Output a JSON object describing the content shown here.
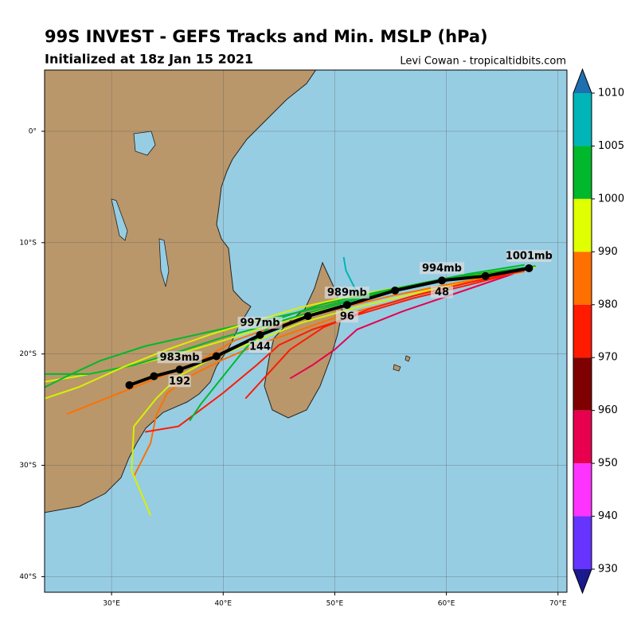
{
  "header": {
    "title": "99S INVEST - GEFS Tracks and Min. MSLP (hPa)",
    "subtitle": "Initialized at 18z Jan 15 2021",
    "credit": "Levi Cowan - tropicaltidbits.com"
  },
  "map": {
    "lonlim": [
      24,
      70.8
    ],
    "latlim": [
      5.5,
      -41.4
    ],
    "lonticks": [
      {
        "value": 30,
        "label": "30°E"
      },
      {
        "value": 40,
        "label": "40°E"
      },
      {
        "value": 50,
        "label": "50°E"
      },
      {
        "value": 60,
        "label": "60°E"
      },
      {
        "value": 70,
        "label": "70°E"
      }
    ],
    "latticks": [
      {
        "value": 0,
        "label": "0°"
      },
      {
        "value": -10,
        "label": "10°S"
      },
      {
        "value": -20,
        "label": "20°S"
      },
      {
        "value": -30,
        "label": "30°S"
      },
      {
        "value": -40,
        "label": "40°S"
      }
    ],
    "grid": true
  },
  "members": [
    {
      "color": "#d8f000",
      "lon": [
        68,
        64,
        60,
        56,
        52,
        48,
        44,
        40,
        36,
        32,
        27,
        24
      ],
      "lat": [
        -12.2,
        -12.6,
        -13.2,
        -14.0,
        -15.0,
        -16.3,
        -17.5,
        -18.8,
        -20.0,
        -21.0,
        -22.0,
        -22.5
      ]
    },
    {
      "color": "#00b82c",
      "lon": [
        68,
        63,
        58,
        53,
        48,
        44,
        40,
        36,
        32,
        28,
        24
      ],
      "lat": [
        -12.1,
        -12.8,
        -13.6,
        -14.8,
        -16.2,
        -17.4,
        -18.5,
        -19.8,
        -21.0,
        -21.8,
        -21.8
      ]
    },
    {
      "color": "#ff7000",
      "lon": [
        67.5,
        63,
        59,
        55,
        51,
        47,
        43,
        40,
        37,
        35,
        34,
        33.5,
        32
      ],
      "lat": [
        -12.3,
        -13.2,
        -14.2,
        -15.4,
        -16.4,
        -17.8,
        -19.2,
        -20.5,
        -22.0,
        -23.5,
        -25.5,
        -28,
        -31
      ]
    },
    {
      "color": "#d8f000",
      "lon": [
        67,
        62,
        57,
        52,
        47,
        43,
        39,
        36,
        34,
        32,
        31.8,
        33.5
      ],
      "lat": [
        -12.4,
        -13.4,
        -14.6,
        -15.8,
        -17.2,
        -18.8,
        -20.4,
        -22.0,
        -24.0,
        -26.5,
        -30.5,
        -34.5
      ]
    },
    {
      "color": "#ff1a00",
      "lon": [
        67,
        62,
        57,
        52,
        48,
        45,
        43,
        40,
        36,
        33
      ],
      "lat": [
        -12.5,
        -13.8,
        -15.0,
        -16.5,
        -17.8,
        -19.2,
        -21.0,
        -23.5,
        -26.5,
        -27.0
      ]
    },
    {
      "color": "#e8004e",
      "lon": [
        66,
        61,
        56,
        52,
        50,
        48,
        46
      ],
      "lat": [
        -12.8,
        -14.5,
        -16.2,
        -17.8,
        -19.6,
        -21.0,
        -22.2
      ]
    },
    {
      "color": "#00b82c",
      "lon": [
        67,
        62,
        57,
        52,
        47,
        42,
        37,
        33,
        29,
        26,
        24
      ],
      "lat": [
        -12,
        -12.8,
        -13.8,
        -15.0,
        -16.2,
        -17.3,
        -18.4,
        -19.3,
        -20.6,
        -22.0,
        -23.0
      ]
    },
    {
      "color": "#ff7000",
      "lon": [
        67,
        61,
        55,
        50,
        45,
        41,
        38,
        34,
        30,
        26
      ],
      "lat": [
        -12.6,
        -13.6,
        -14.8,
        -16.0,
        -17.4,
        -18.8,
        -20.6,
        -22.2,
        -23.8,
        -25.4
      ]
    },
    {
      "color": "#d8f000",
      "lon": [
        67.5,
        62,
        57,
        52,
        47,
        43,
        39,
        35,
        31,
        27,
        24
      ],
      "lat": [
        -12.3,
        -13.0,
        -13.8,
        -14.7,
        -15.8,
        -17.0,
        -18.2,
        -19.6,
        -21.2,
        -23.0,
        -24.0
      ]
    },
    {
      "color": "#00b82c",
      "lon": [
        66,
        60,
        54,
        49,
        45,
        42,
        40,
        38,
        37
      ],
      "lat": [
        -12.4,
        -13.2,
        -14.4,
        -15.5,
        -16.8,
        -19.5,
        -22.0,
        -24.5,
        -26.0
      ]
    },
    {
      "color": "#00b4b4",
      "lon": [
        52,
        51.5,
        51,
        50.8
      ],
      "lat": [
        -14.5,
        -13.5,
        -12.5,
        -11.3
      ]
    },
    {
      "color": "#ff1a00",
      "lon": [
        67,
        62,
        57,
        53,
        49,
        46,
        44,
        42
      ],
      "lat": [
        -12.5,
        -13.6,
        -14.8,
        -16.0,
        -17.6,
        -19.6,
        -21.8,
        -24.0
      ]
    }
  ],
  "mean_track": {
    "color": "#000000",
    "points": [
      {
        "lon": 67.4,
        "lat": -12.3,
        "pressure": "1001mb"
      },
      {
        "lon": 63.5,
        "lat": -13.0
      },
      {
        "lon": 59.6,
        "lat": -13.4,
        "pressure": "994mb",
        "hour": 48
      },
      {
        "lon": 55.4,
        "lat": -14.3
      },
      {
        "lon": 51.1,
        "lat": -15.6,
        "pressure": "989mb",
        "hour": 96
      },
      {
        "lon": 47.6,
        "lat": -16.6
      },
      {
        "lon": 43.3,
        "lat": -18.3,
        "pressure": "997mb",
        "hour": 144
      },
      {
        "lon": 39.4,
        "lat": -20.2
      },
      {
        "lon": 36.1,
        "lat": -21.4,
        "pressure": "983mb",
        "hour": 192
      },
      {
        "lon": 33.8,
        "lat": -22.0
      },
      {
        "lon": 31.6,
        "lat": -22.8
      }
    ]
  },
  "colorbar": {
    "ticks": [
      1010,
      1005,
      1000,
      990,
      980,
      970,
      960,
      950,
      940,
      930
    ],
    "colors": [
      "#00b5b8",
      "#00b82c",
      "#e0ff00",
      "#ff7000",
      "#ff1a00",
      "#7f0000",
      "#e8004e",
      "#ff33ff",
      "#6633ff"
    ],
    "extend_colors": [
      "#1e6fb0",
      "#1a1a8c"
    ]
  }
}
